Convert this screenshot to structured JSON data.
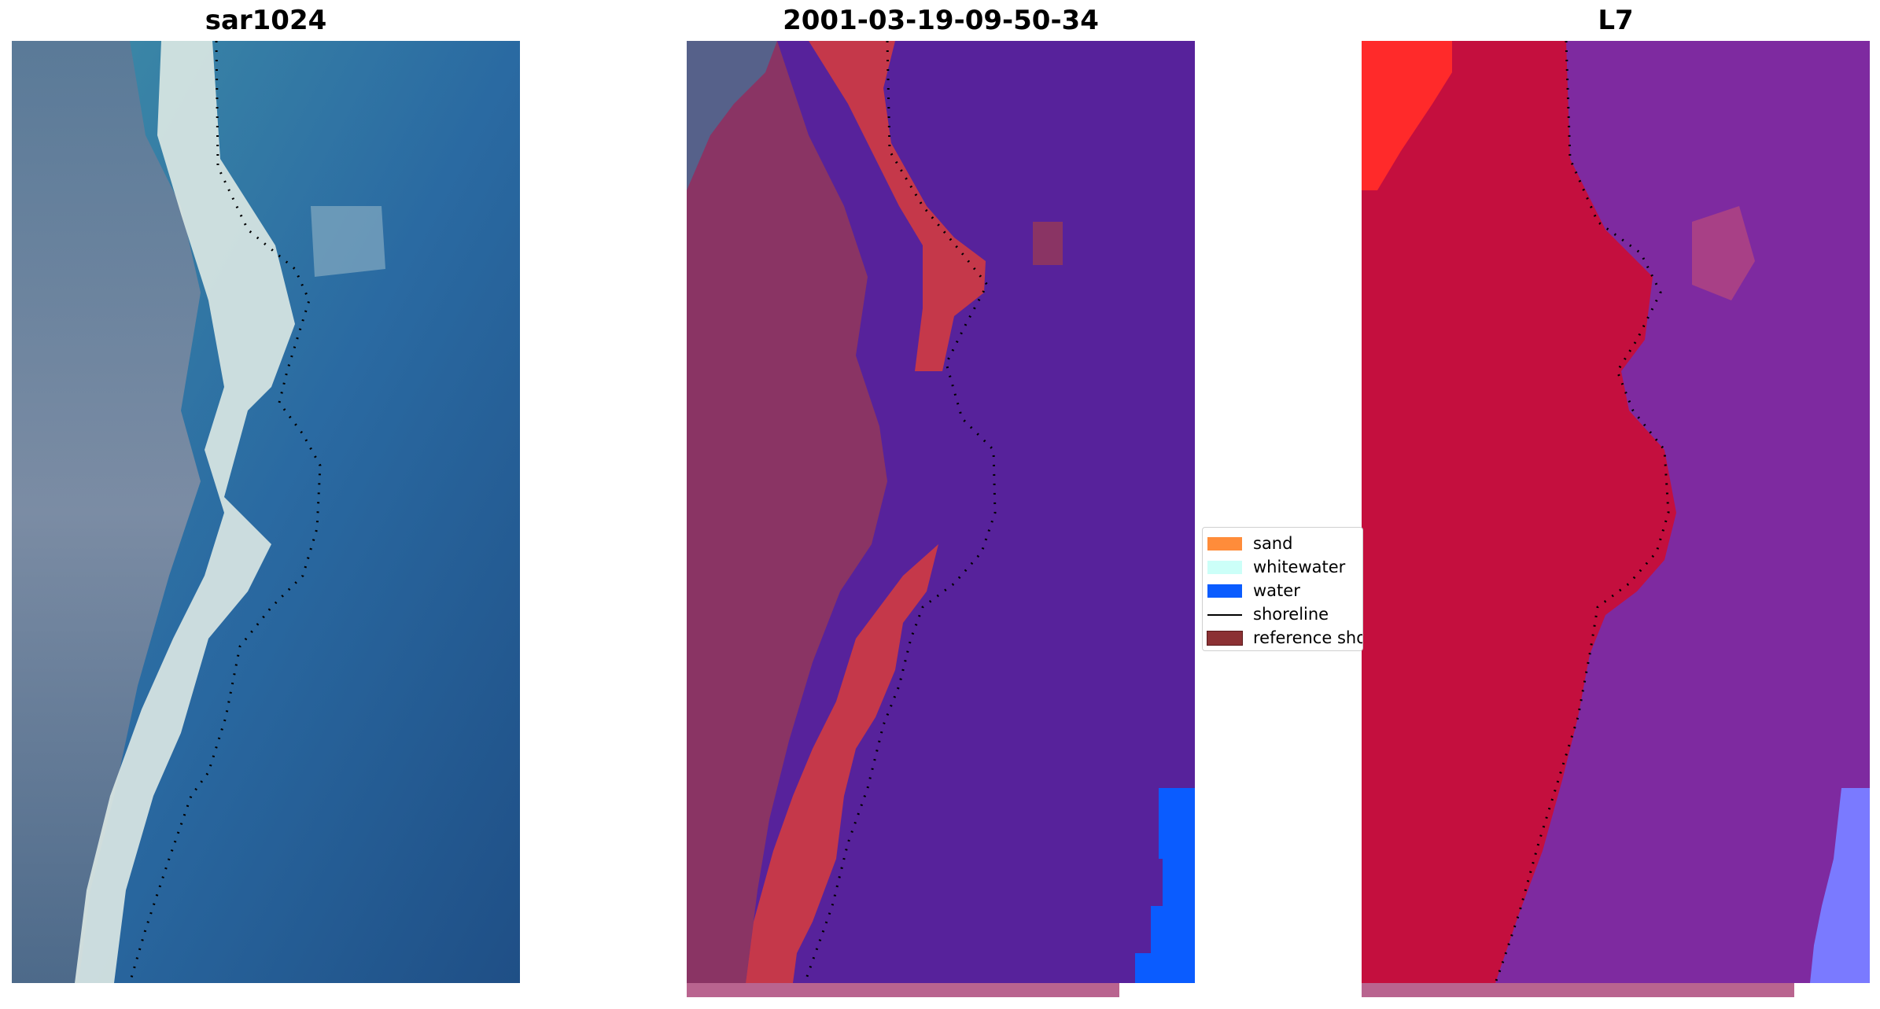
{
  "panels": [
    {
      "title": "sar1024"
    },
    {
      "title": "2001-03-19-09-50-34"
    },
    {
      "title": "L7"
    }
  ],
  "legend": {
    "items": [
      {
        "label": "sand",
        "color": "#ff8c3a"
      },
      {
        "label": "whitewater",
        "color": "#ccfff8"
      },
      {
        "label": "water",
        "color": "#0a5cff"
      },
      {
        "label": "shoreline",
        "color": "#000000"
      },
      {
        "label": "reference shoreline",
        "color": "#8b3134"
      }
    ]
  },
  "colors": {
    "rgb_water": "#2c6aa0",
    "rgb_land": "#6e849c",
    "rgb_beach": "#e4eee8",
    "class_water": "#57229b",
    "class_land": "#8a3464",
    "class_sand": "#c5384a",
    "class_water_blue": "#0a5cff",
    "l7_land": "#c40f3e",
    "l7_water": "#7e2aa0",
    "l7_bright_red": "#ff2a2a",
    "l7_light_blue": "#7a7aff"
  }
}
